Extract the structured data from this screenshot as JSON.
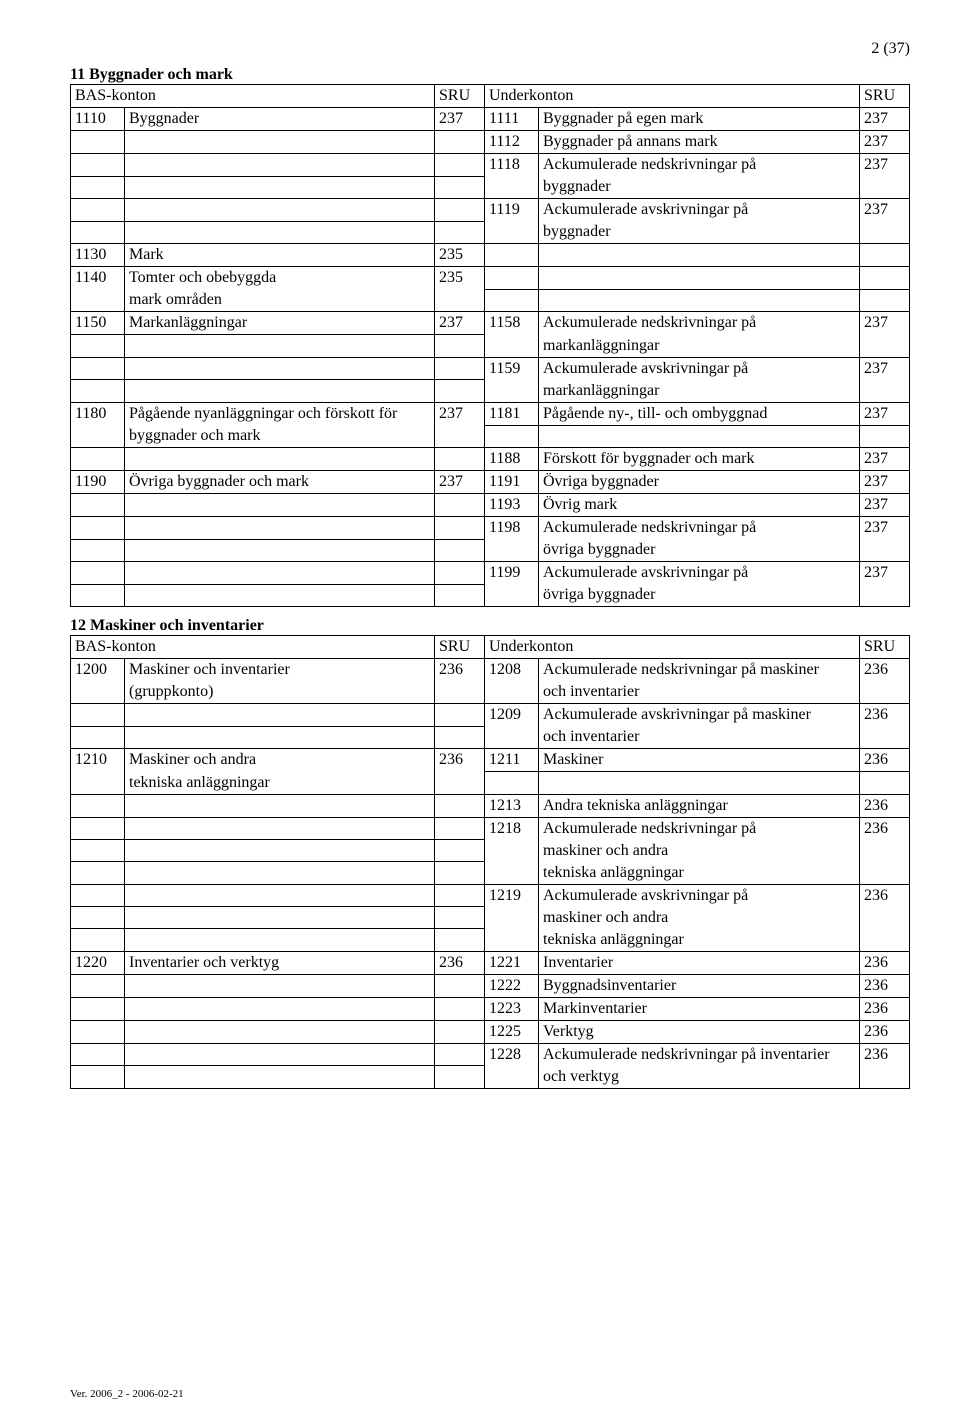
{
  "page_number": "2 (37)",
  "footer": "Ver. 2006_2 - 2006-02-21",
  "section1": {
    "title": "11 Byggnader och mark",
    "header": [
      "BAS-konton",
      "SRU",
      "Underkonton",
      "SRU"
    ],
    "rows": [
      {
        "c1": "1110",
        "c2": "Byggnader",
        "c3": "237",
        "c4": "1111",
        "c5": "Byggnader på egen mark",
        "c6": "237"
      },
      {
        "c1": "",
        "c2": "",
        "c3": "",
        "c4": "1112",
        "c5": "Byggnader på annans mark",
        "c6": "237"
      },
      {
        "c1": "",
        "c2": "",
        "c3": "",
        "c4": "1118",
        "c5": "Ackumulerade nedskrivningar på byggnader",
        "c6": "237",
        "c6cont": true
      },
      {
        "c1": "",
        "c2": "",
        "c3": "",
        "c4": "1119",
        "c5": "Ackumulerade avskrivningar på byggnader",
        "c6": "237",
        "c6cont": true
      },
      {
        "c1": "1130",
        "c2": "Mark",
        "c3": "235",
        "c4": "",
        "c5": "",
        "c6": ""
      },
      {
        "c1": "1140",
        "c2": "Tomter och obebyggda mark områden",
        "c3": "235",
        "c4": "",
        "c5": "",
        "c6": "",
        "c3cont": true
      },
      {
        "c1": "1150",
        "c2": "Markanläggningar",
        "c3": "237",
        "c4": "1158",
        "c5": "Ackumulerade nedskrivningar på markanläggningar",
        "c6": "237",
        "c6cont": true
      },
      {
        "c1": "",
        "c2": "",
        "c3": "",
        "c4": "1159",
        "c5": "Ackumulerade avskrivningar på markanläggningar",
        "c6": "237",
        "c6cont": true
      },
      {
        "c1": "1180",
        "c2": "Pågående nyanläggningar och förskott för byggnader och mark",
        "c3": "237",
        "c4": "1181",
        "c5": "Pågående ny-, till- och ombyggnad",
        "c6": "237",
        "c3cont": true
      },
      {
        "c1": "",
        "c2": "",
        "c3": "",
        "c4": "1188",
        "c5": "Förskott för byggnader och mark",
        "c6": "237"
      },
      {
        "c1": "1190",
        "c2": "Övriga byggnader och mark",
        "c3": "237",
        "c4": "1191",
        "c5": "Övriga byggnader",
        "c6": "237"
      },
      {
        "c1": "",
        "c2": "",
        "c3": "",
        "c4": "1193",
        "c5": "Övrig mark",
        "c6": "237"
      },
      {
        "c1": "",
        "c2": "",
        "c3": "",
        "c4": "1198",
        "c5": "Ackumulerade nedskrivningar på övriga byggnader",
        "c6": "237",
        "c6cont": true
      },
      {
        "c1": "",
        "c2": "",
        "c3": "",
        "c4": "1199",
        "c5": "Ackumulerade avskrivningar på övriga byggnader",
        "c6": "237",
        "c6cont": true
      }
    ]
  },
  "section2": {
    "title": "12 Maskiner och inventarier",
    "header": [
      "BAS-konton",
      "SRU",
      "Underkonton",
      "SRU"
    ],
    "rows": [
      {
        "c1": "1200",
        "c2": "Maskiner och inventarier (gruppkonto)",
        "c3": "236",
        "c4": "1208",
        "c5": "Ackumulerade nedskrivningar på maskiner och inventarier",
        "c6": "236",
        "c3cont": true,
        "c6cont": true
      },
      {
        "c1": "",
        "c2": "",
        "c3": "",
        "c4": "1209",
        "c5": "Ackumulerade avskrivningar på maskiner och inventarier",
        "c6": "236",
        "c6cont": true
      },
      {
        "c1": "1210",
        "c2": "Maskiner och andra tekniska anläggningar",
        "c3": "236",
        "c4": "1211",
        "c5": "Maskiner",
        "c6": "236",
        "c3cont": true
      },
      {
        "c1": "",
        "c2": "",
        "c3": "",
        "c4": "1213",
        "c5": "Andra tekniska anläggningar",
        "c6": "236"
      },
      {
        "c1": "",
        "c2": "",
        "c3": "",
        "c4": "1218",
        "c5": "Ackumulerade nedskrivningar på maskiner och andra tekniska anläggningar",
        "c6": "236",
        "c6cont": true
      },
      {
        "c1": "",
        "c2": "",
        "c3": "",
        "c4": "1219",
        "c5": "Ackumulerade avskrivningar på maskiner och andra tekniska anläggningar",
        "c6": "236",
        "c6cont": true
      },
      {
        "c1": "1220",
        "c2": "Inventarier och verktyg",
        "c3": "236",
        "c4": "1221",
        "c5": "Inventarier",
        "c6": "236"
      },
      {
        "c1": "",
        "c2": "",
        "c3": "",
        "c4": "1222",
        "c5": "Byggnadsinventarier",
        "c6": "236"
      },
      {
        "c1": "",
        "c2": "",
        "c3": "",
        "c4": "1223",
        "c5": "Markinventarier",
        "c6": "236"
      },
      {
        "c1": "",
        "c2": "",
        "c3": "",
        "c4": "1225",
        "c5": "Verktyg",
        "c6": "236"
      },
      {
        "c1": "",
        "c2": "",
        "c3": "",
        "c4": "1228",
        "c5": "Ackumulerade nedskrivningar på inventarier och verktyg",
        "c6": "236",
        "c6cont": true
      }
    ]
  }
}
